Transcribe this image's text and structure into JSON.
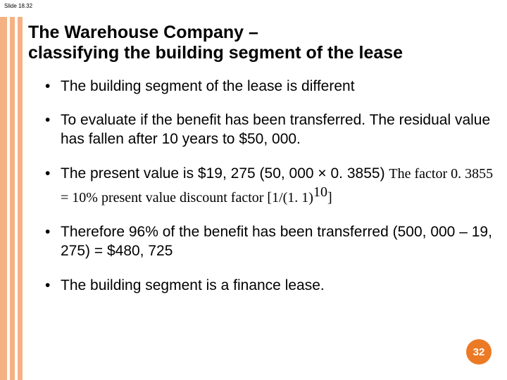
{
  "topleft": "Slide 18.32",
  "title_line1": "The Warehouse Company –",
  "title_line2": "classifying the building segment of the lease",
  "title_fontsize": 25,
  "bullets": [
    "The building segment of the lease is different",
    "To evaluate if the benefit has been transferred. The residual value has fallen after 10 years to $50, 000.",
    "",
    "Therefore 96% of the benefit has been transferred (500, 000 – 19, 275) = $480, 725",
    "The building segment is a finance lease."
  ],
  "bullet3_arial": "The present value is $19, 275 (50, 000 × 0. 3855) ",
  "bullet3_serif_a": "The factor 0. 3855 = 10% present value discount factor [1/(1. 1)",
  "bullet3_sup": "10",
  "bullet3_serif_b": "]",
  "bullet_fontsize": 21,
  "serif_fontsize": 20,
  "stripes": {
    "colors": [
      "#f5b183",
      "#ffffff",
      "#f5b183",
      "#ffffff",
      "#f5b183"
    ],
    "widths": [
      10,
      4,
      7,
      4,
      7
    ]
  },
  "badge": {
    "text": "32",
    "bg": "#ec7a24",
    "fg": "#ffffff",
    "fontsize": 15
  },
  "background": "#ffffff"
}
